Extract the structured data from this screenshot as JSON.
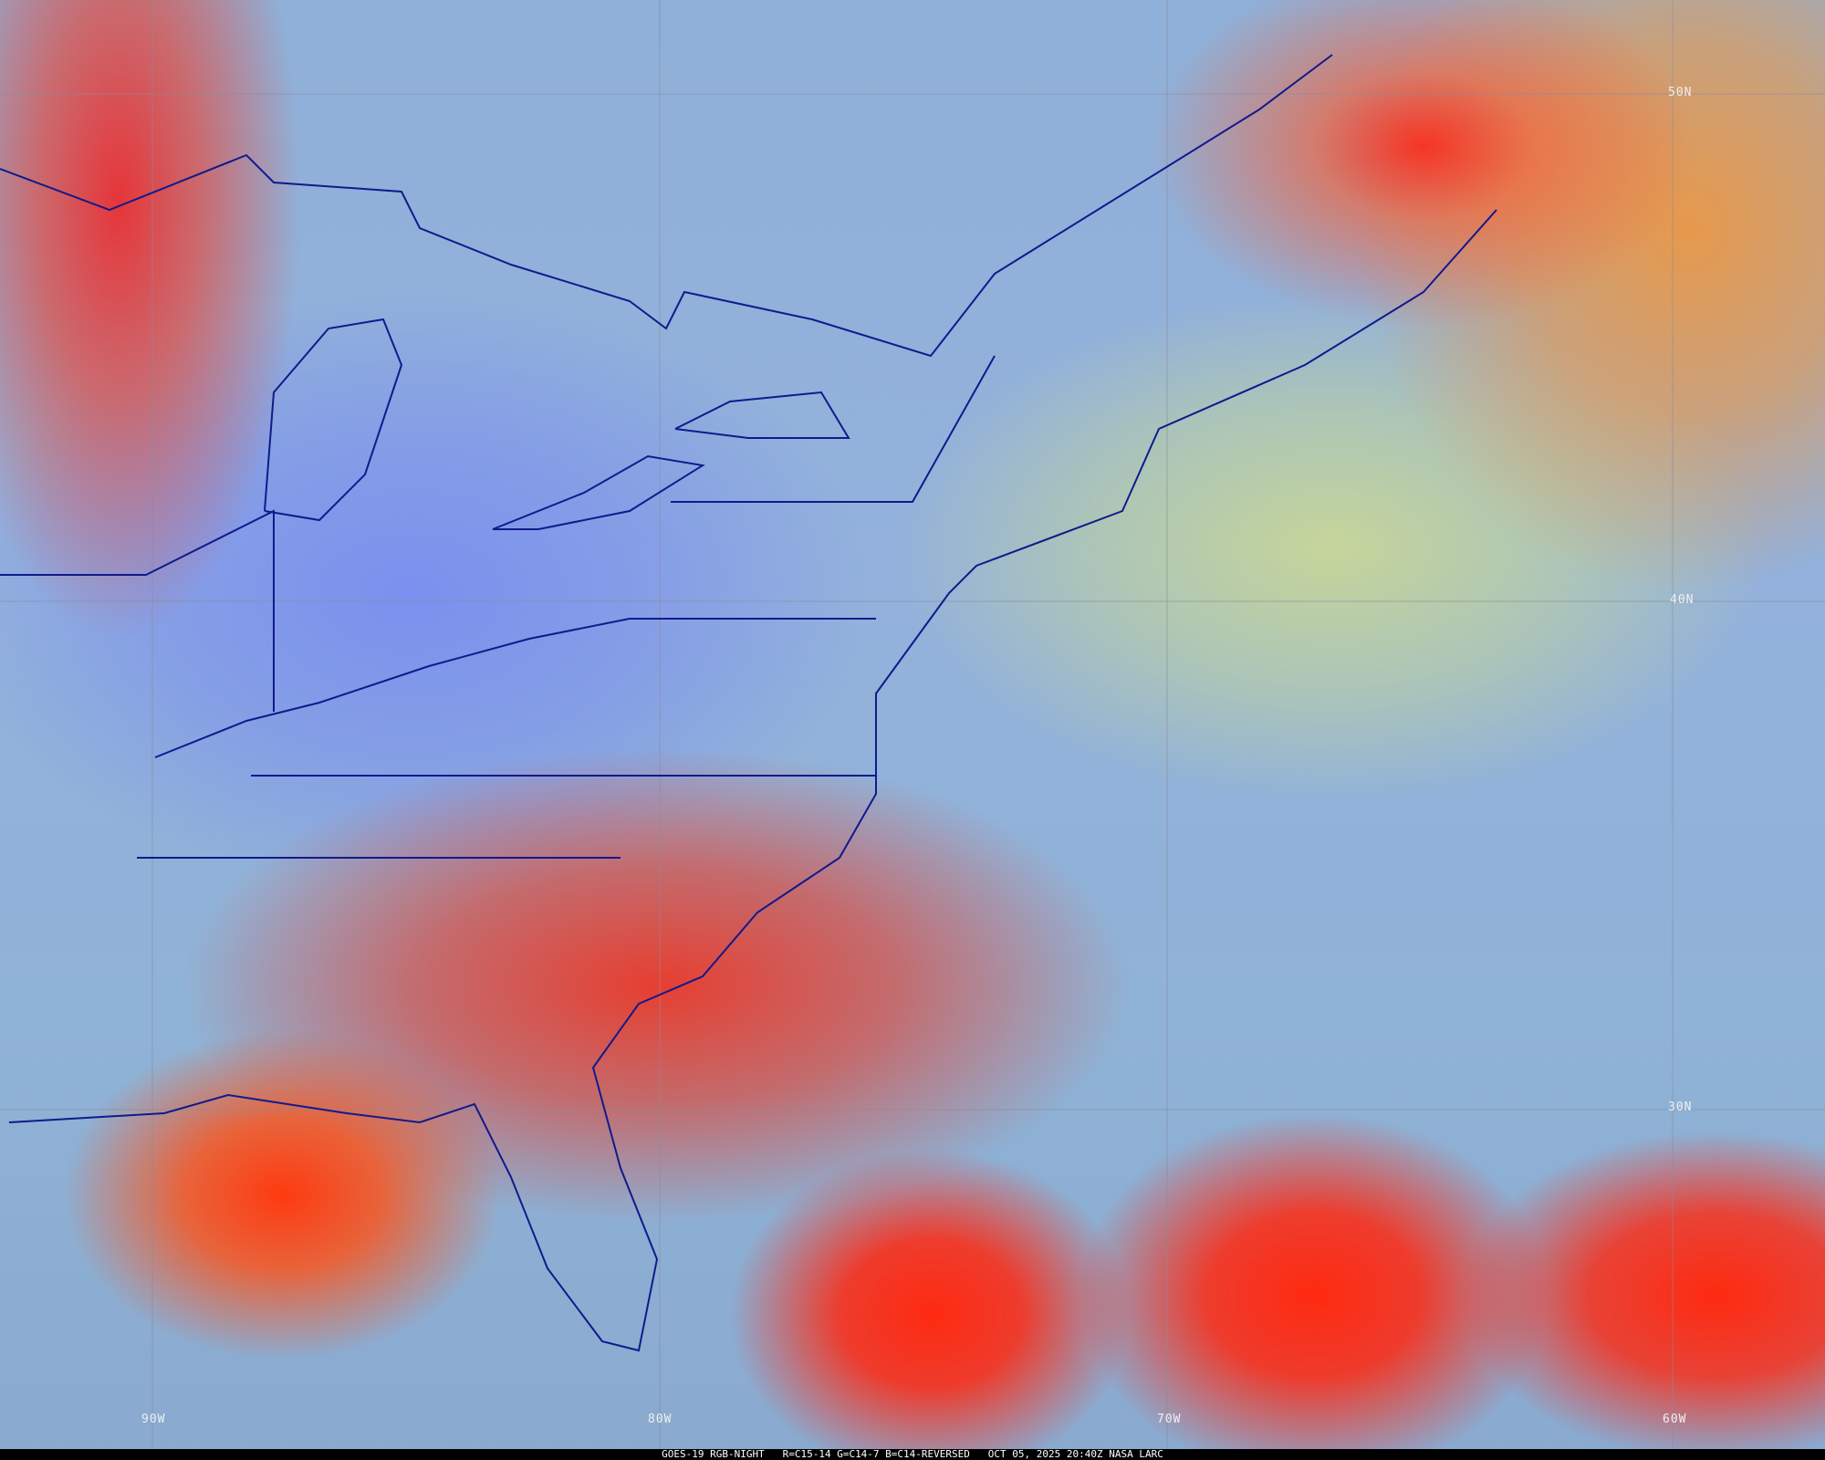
{
  "map": {
    "lat_labels": [
      "50N",
      "40N",
      "30N"
    ],
    "lon_labels": [
      "90W",
      "80W",
      "70W",
      "60W"
    ],
    "caption": {
      "satellite": "GOES-19 RGB-NIGHT",
      "bands": "R=C15-14 G=C14-7 B=C14-REVERSED",
      "datetime": "OCT 05, 2025 20:40Z",
      "credit": "NASA LARC"
    },
    "colors": {
      "border": "#101a8c",
      "grid": "#8a8a9a",
      "high_cloud": "#ff2a10",
      "clear_land": "#7f95ee",
      "low_cloud": "#c8d89a"
    }
  }
}
